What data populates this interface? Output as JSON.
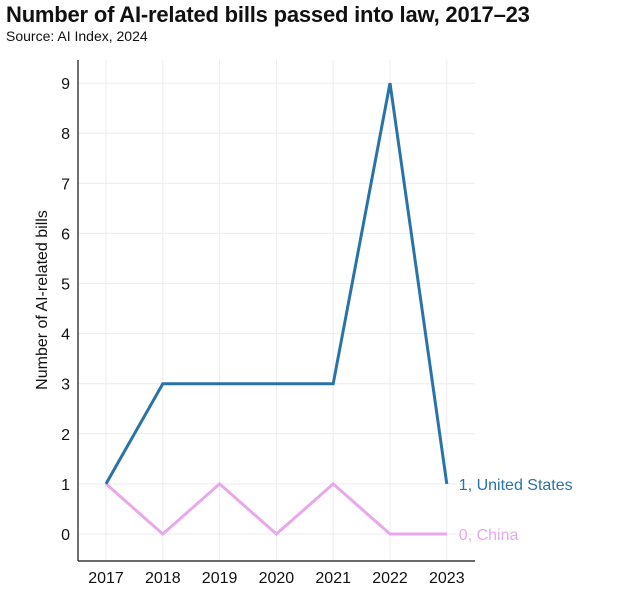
{
  "header": {
    "title": "Number of AI-related bills passed into law, 2017–23",
    "subtitle": "Source: AI Index, 2024"
  },
  "chart_data": {
    "type": "line",
    "title": "Number of AI-related bills passed into law, 2017–23",
    "subtitle": "Source: AI Index, 2024",
    "xlabel": "",
    "ylabel": "Number of AI-related bills",
    "categories": [
      "2017",
      "2018",
      "2019",
      "2020",
      "2021",
      "2022",
      "2023"
    ],
    "ylim": [
      0,
      9
    ],
    "yticks": [
      0,
      1,
      2,
      3,
      4,
      5,
      6,
      7,
      8,
      9
    ],
    "grid": true,
    "series": [
      {
        "name": "United States",
        "values": [
          1,
          3,
          3,
          3,
          3,
          9,
          1
        ],
        "color": "#2a73a8",
        "end_label": "1, United States"
      },
      {
        "name": "China",
        "values": [
          1,
          0,
          1,
          0,
          1,
          0,
          0
        ],
        "color": "#e9a8ec",
        "end_label": "0, China"
      }
    ]
  }
}
